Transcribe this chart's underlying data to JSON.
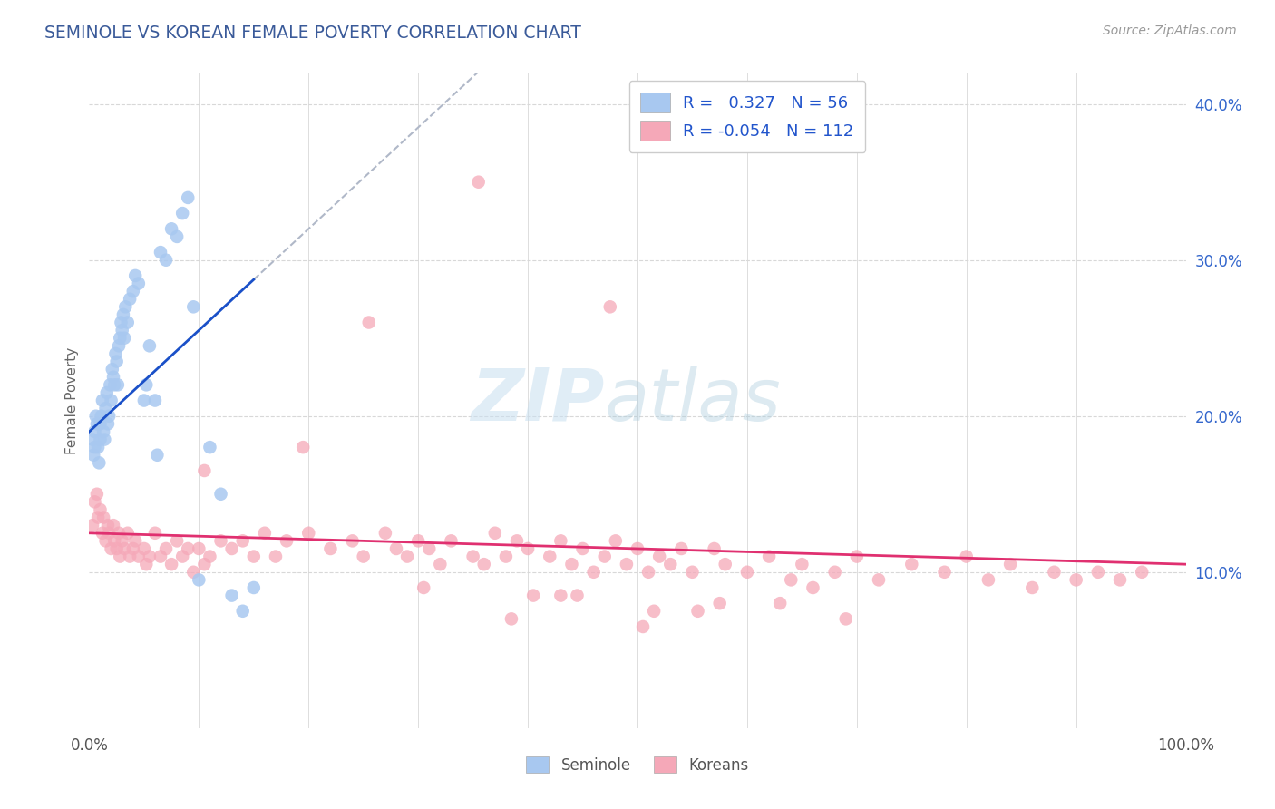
{
  "title": "SEMINOLE VS KOREAN FEMALE POVERTY CORRELATION CHART",
  "source_text": "Source: ZipAtlas.com",
  "ylabel": "Female Poverty",
  "xlim": [
    0,
    100
  ],
  "ylim": [
    0,
    42
  ],
  "x_tick_labels": [
    "0.0%",
    "100.0%"
  ],
  "x_ticks": [
    0,
    100
  ],
  "y_tick_labels_right": [
    "10.0%",
    "20.0%",
    "30.0%",
    "40.0%"
  ],
  "y_ticks_right": [
    10,
    20,
    30,
    40
  ],
  "seminole_R": 0.327,
  "seminole_N": 56,
  "korean_R": -0.054,
  "korean_N": 112,
  "seminole_color": "#a8c8f0",
  "seminole_line_color": "#1a50c8",
  "korean_color": "#f5a8b8",
  "korean_line_color": "#e03070",
  "watermark_color": "#cce4f5",
  "background_color": "#ffffff",
  "grid_color": "#d8d8d8",
  "seminole_x": [
    0.3,
    0.4,
    0.5,
    0.5,
    0.6,
    0.7,
    0.8,
    0.9,
    1.0,
    1.0,
    1.1,
    1.2,
    1.3,
    1.4,
    1.5,
    1.6,
    1.7,
    1.8,
    1.9,
    2.0,
    2.1,
    2.2,
    2.3,
    2.4,
    2.5,
    2.6,
    2.7,
    2.8,
    2.9,
    3.0,
    3.1,
    3.2,
    3.3,
    3.5,
    3.7,
    4.0,
    4.2,
    4.5,
    5.0,
    5.2,
    5.5,
    6.0,
    6.2,
    6.5,
    7.0,
    7.5,
    8.0,
    8.5,
    9.0,
    9.5,
    10.0,
    11.0,
    12.0,
    13.0,
    14.0,
    15.0
  ],
  "seminole_y": [
    18.5,
    17.5,
    18.0,
    19.0,
    20.0,
    19.5,
    18.0,
    17.0,
    18.5,
    19.5,
    20.0,
    21.0,
    19.0,
    18.5,
    20.5,
    21.5,
    19.5,
    20.0,
    22.0,
    21.0,
    23.0,
    22.5,
    22.0,
    24.0,
    23.5,
    22.0,
    24.5,
    25.0,
    26.0,
    25.5,
    26.5,
    25.0,
    27.0,
    26.0,
    27.5,
    28.0,
    29.0,
    28.5,
    21.0,
    22.0,
    24.5,
    21.0,
    17.5,
    30.5,
    30.0,
    32.0,
    31.5,
    33.0,
    34.0,
    27.0,
    9.5,
    18.0,
    15.0,
    8.5,
    7.5,
    9.0
  ],
  "korean_x": [
    0.3,
    0.5,
    0.7,
    0.8,
    1.0,
    1.2,
    1.3,
    1.5,
    1.7,
    1.8,
    2.0,
    2.2,
    2.3,
    2.5,
    2.7,
    2.8,
    3.0,
    3.2,
    3.5,
    3.7,
    4.0,
    4.2,
    4.5,
    5.0,
    5.2,
    5.5,
    6.0,
    6.5,
    7.0,
    7.5,
    8.0,
    8.5,
    9.0,
    9.5,
    10.0,
    10.5,
    11.0,
    12.0,
    13.0,
    14.0,
    15.0,
    16.0,
    17.0,
    18.0,
    20.0,
    22.0,
    24.0,
    25.0,
    27.0,
    28.0,
    29.0,
    30.0,
    31.0,
    32.0,
    33.0,
    35.0,
    36.0,
    37.0,
    38.0,
    39.0,
    40.0,
    42.0,
    43.0,
    44.0,
    45.0,
    46.0,
    47.0,
    48.0,
    49.0,
    50.0,
    51.0,
    52.0,
    53.0,
    54.0,
    55.0,
    57.0,
    58.0,
    60.0,
    62.0,
    64.0,
    65.0,
    66.0,
    68.0,
    70.0,
    72.0,
    75.0,
    78.0,
    80.0,
    82.0,
    84.0,
    86.0,
    88.0,
    90.0,
    92.0,
    94.0,
    96.0,
    47.5,
    35.5,
    25.5,
    19.5,
    10.5,
    55.5,
    40.5,
    63.0,
    30.5,
    44.5,
    69.0,
    57.5,
    50.5,
    38.5,
    43.0,
    51.5
  ],
  "korean_y": [
    13.0,
    14.5,
    15.0,
    13.5,
    14.0,
    12.5,
    13.5,
    12.0,
    13.0,
    12.5,
    11.5,
    13.0,
    12.0,
    11.5,
    12.5,
    11.0,
    12.0,
    11.5,
    12.5,
    11.0,
    11.5,
    12.0,
    11.0,
    11.5,
    10.5,
    11.0,
    12.5,
    11.0,
    11.5,
    10.5,
    12.0,
    11.0,
    11.5,
    10.0,
    11.5,
    10.5,
    11.0,
    12.0,
    11.5,
    12.0,
    11.0,
    12.5,
    11.0,
    12.0,
    12.5,
    11.5,
    12.0,
    11.0,
    12.5,
    11.5,
    11.0,
    12.0,
    11.5,
    10.5,
    12.0,
    11.0,
    10.5,
    12.5,
    11.0,
    12.0,
    11.5,
    11.0,
    12.0,
    10.5,
    11.5,
    10.0,
    11.0,
    12.0,
    10.5,
    11.5,
    10.0,
    11.0,
    10.5,
    11.5,
    10.0,
    11.5,
    10.5,
    10.0,
    11.0,
    9.5,
    10.5,
    9.0,
    10.0,
    11.0,
    9.5,
    10.5,
    10.0,
    11.0,
    9.5,
    10.5,
    9.0,
    10.0,
    9.5,
    10.0,
    9.5,
    10.0,
    27.0,
    35.0,
    26.0,
    18.0,
    16.5,
    7.5,
    8.5,
    8.0,
    9.0,
    8.5,
    7.0,
    8.0,
    6.5,
    7.0,
    8.5,
    7.5
  ]
}
